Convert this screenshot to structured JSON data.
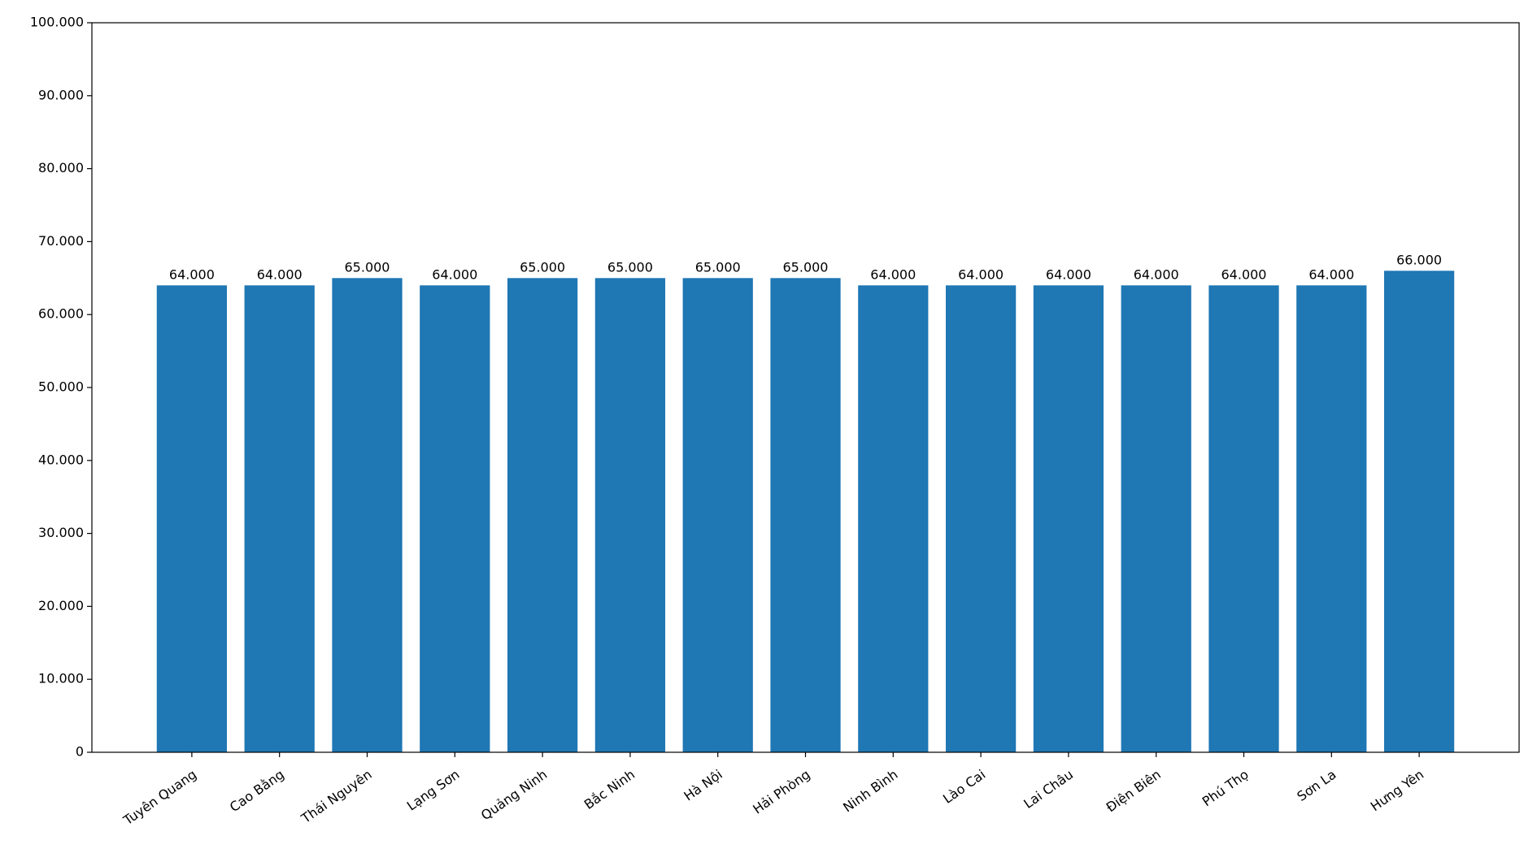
{
  "chart_data": {
    "type": "bar",
    "categories": [
      "Tuyên Quang",
      "Cao Bằng",
      "Thái Nguyên",
      "Lạng Sơn",
      "Quảng Ninh",
      "Bắc Ninh",
      "Hà Nội",
      "Hải Phòng",
      "Ninh Bình",
      "Lào Cai",
      "Lai Châu",
      "Điện Biên",
      "Phú Thọ",
      "Sơn La",
      "Hưng Yên"
    ],
    "values": [
      64000,
      64000,
      65000,
      64000,
      65000,
      65000,
      65000,
      65000,
      64000,
      64000,
      64000,
      64000,
      64000,
      64000,
      66000
    ],
    "value_labels": [
      "64.000",
      "64.000",
      "65.000",
      "64.000",
      "65.000",
      "65.000",
      "65.000",
      "65.000",
      "64.000",
      "64.000",
      "64.000",
      "64.000",
      "64.000",
      "64.000",
      "66.000"
    ],
    "color": "#1f77b4",
    "ylim": [
      0,
      100000
    ],
    "yticks": [
      0,
      {
        "value": 10000,
        "label": "10.000"
      },
      {
        "value": 20000,
        "label": "20.000"
      },
      {
        "value": 30000,
        "label": "30.000"
      },
      {
        "value": 40000,
        "label": "40.000"
      },
      {
        "value": 50000,
        "label": "50.000"
      },
      {
        "value": 60000,
        "label": "60.000"
      },
      {
        "value": 70000,
        "label": "70.000"
      },
      {
        "value": 80000,
        "label": "80.000"
      },
      {
        "value": 90000,
        "label": "90.000"
      },
      {
        "value": 100000,
        "label": "100.000"
      }
    ]
  }
}
